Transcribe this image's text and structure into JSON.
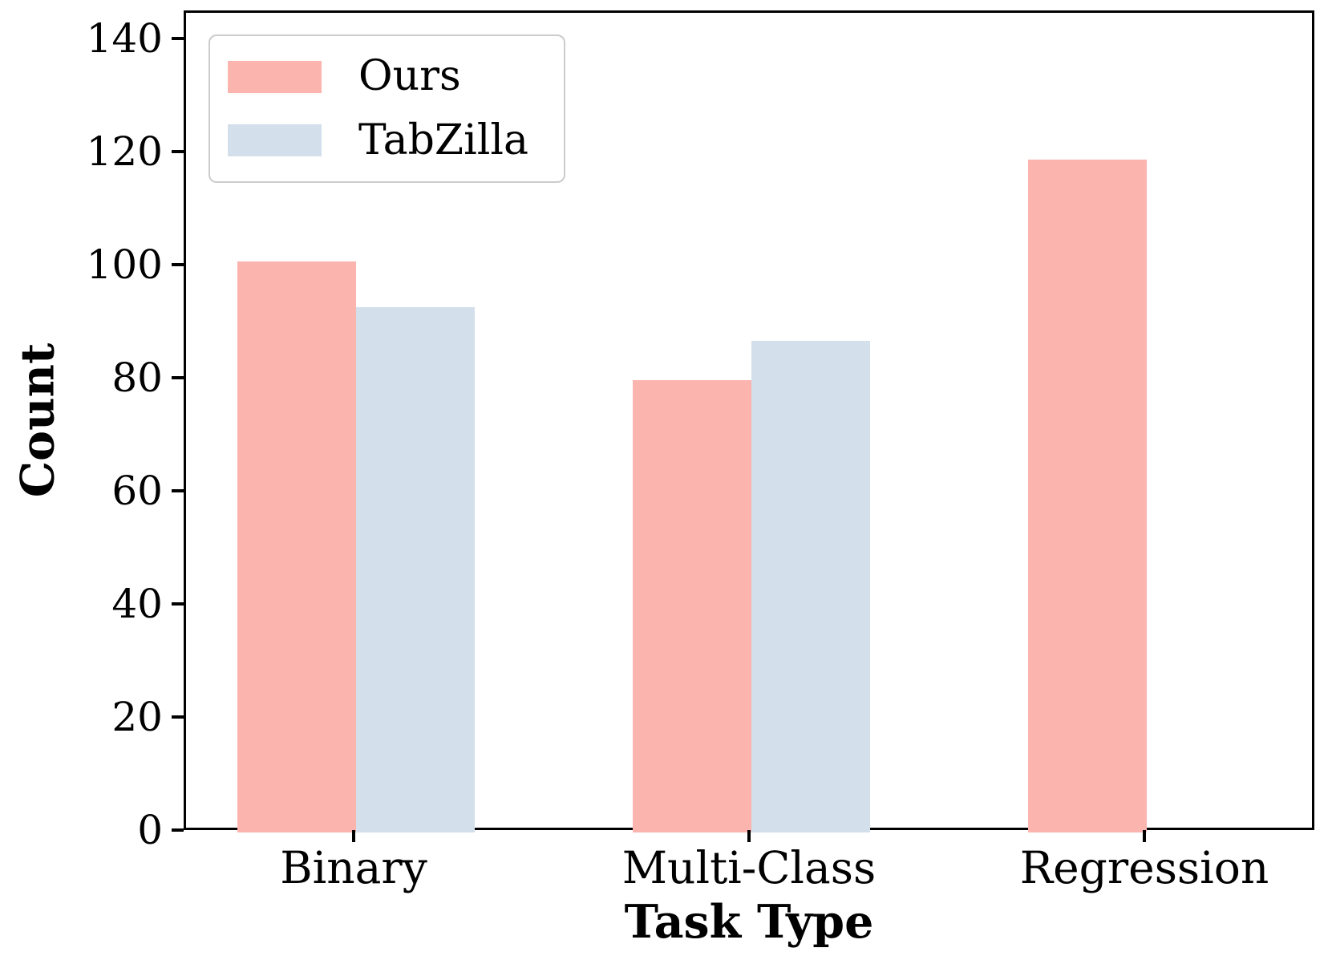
{
  "chart_data": {
    "type": "bar",
    "title": "",
    "xlabel": "Task Type",
    "ylabel": "Count",
    "categories": [
      "Binary",
      "Multi-Class",
      "Regression"
    ],
    "series": [
      {
        "name": "Ours",
        "color": "#FBB4AE",
        "values": [
          101,
          80,
          119
        ]
      },
      {
        "name": "TabZilla",
        "color": "#D3E0EC",
        "values": [
          93,
          87,
          null
        ]
      }
    ],
    "yticks": [
      0,
      20,
      40,
      60,
      80,
      100,
      120,
      140
    ],
    "ylim": [
      0,
      145
    ],
    "xlim": [
      -0.43,
      2.43
    ],
    "bar_width_units": 0.3,
    "grid": false,
    "legend_position": "upper left",
    "axis_color": "#000000",
    "legend_border_color": "#cccccc"
  }
}
